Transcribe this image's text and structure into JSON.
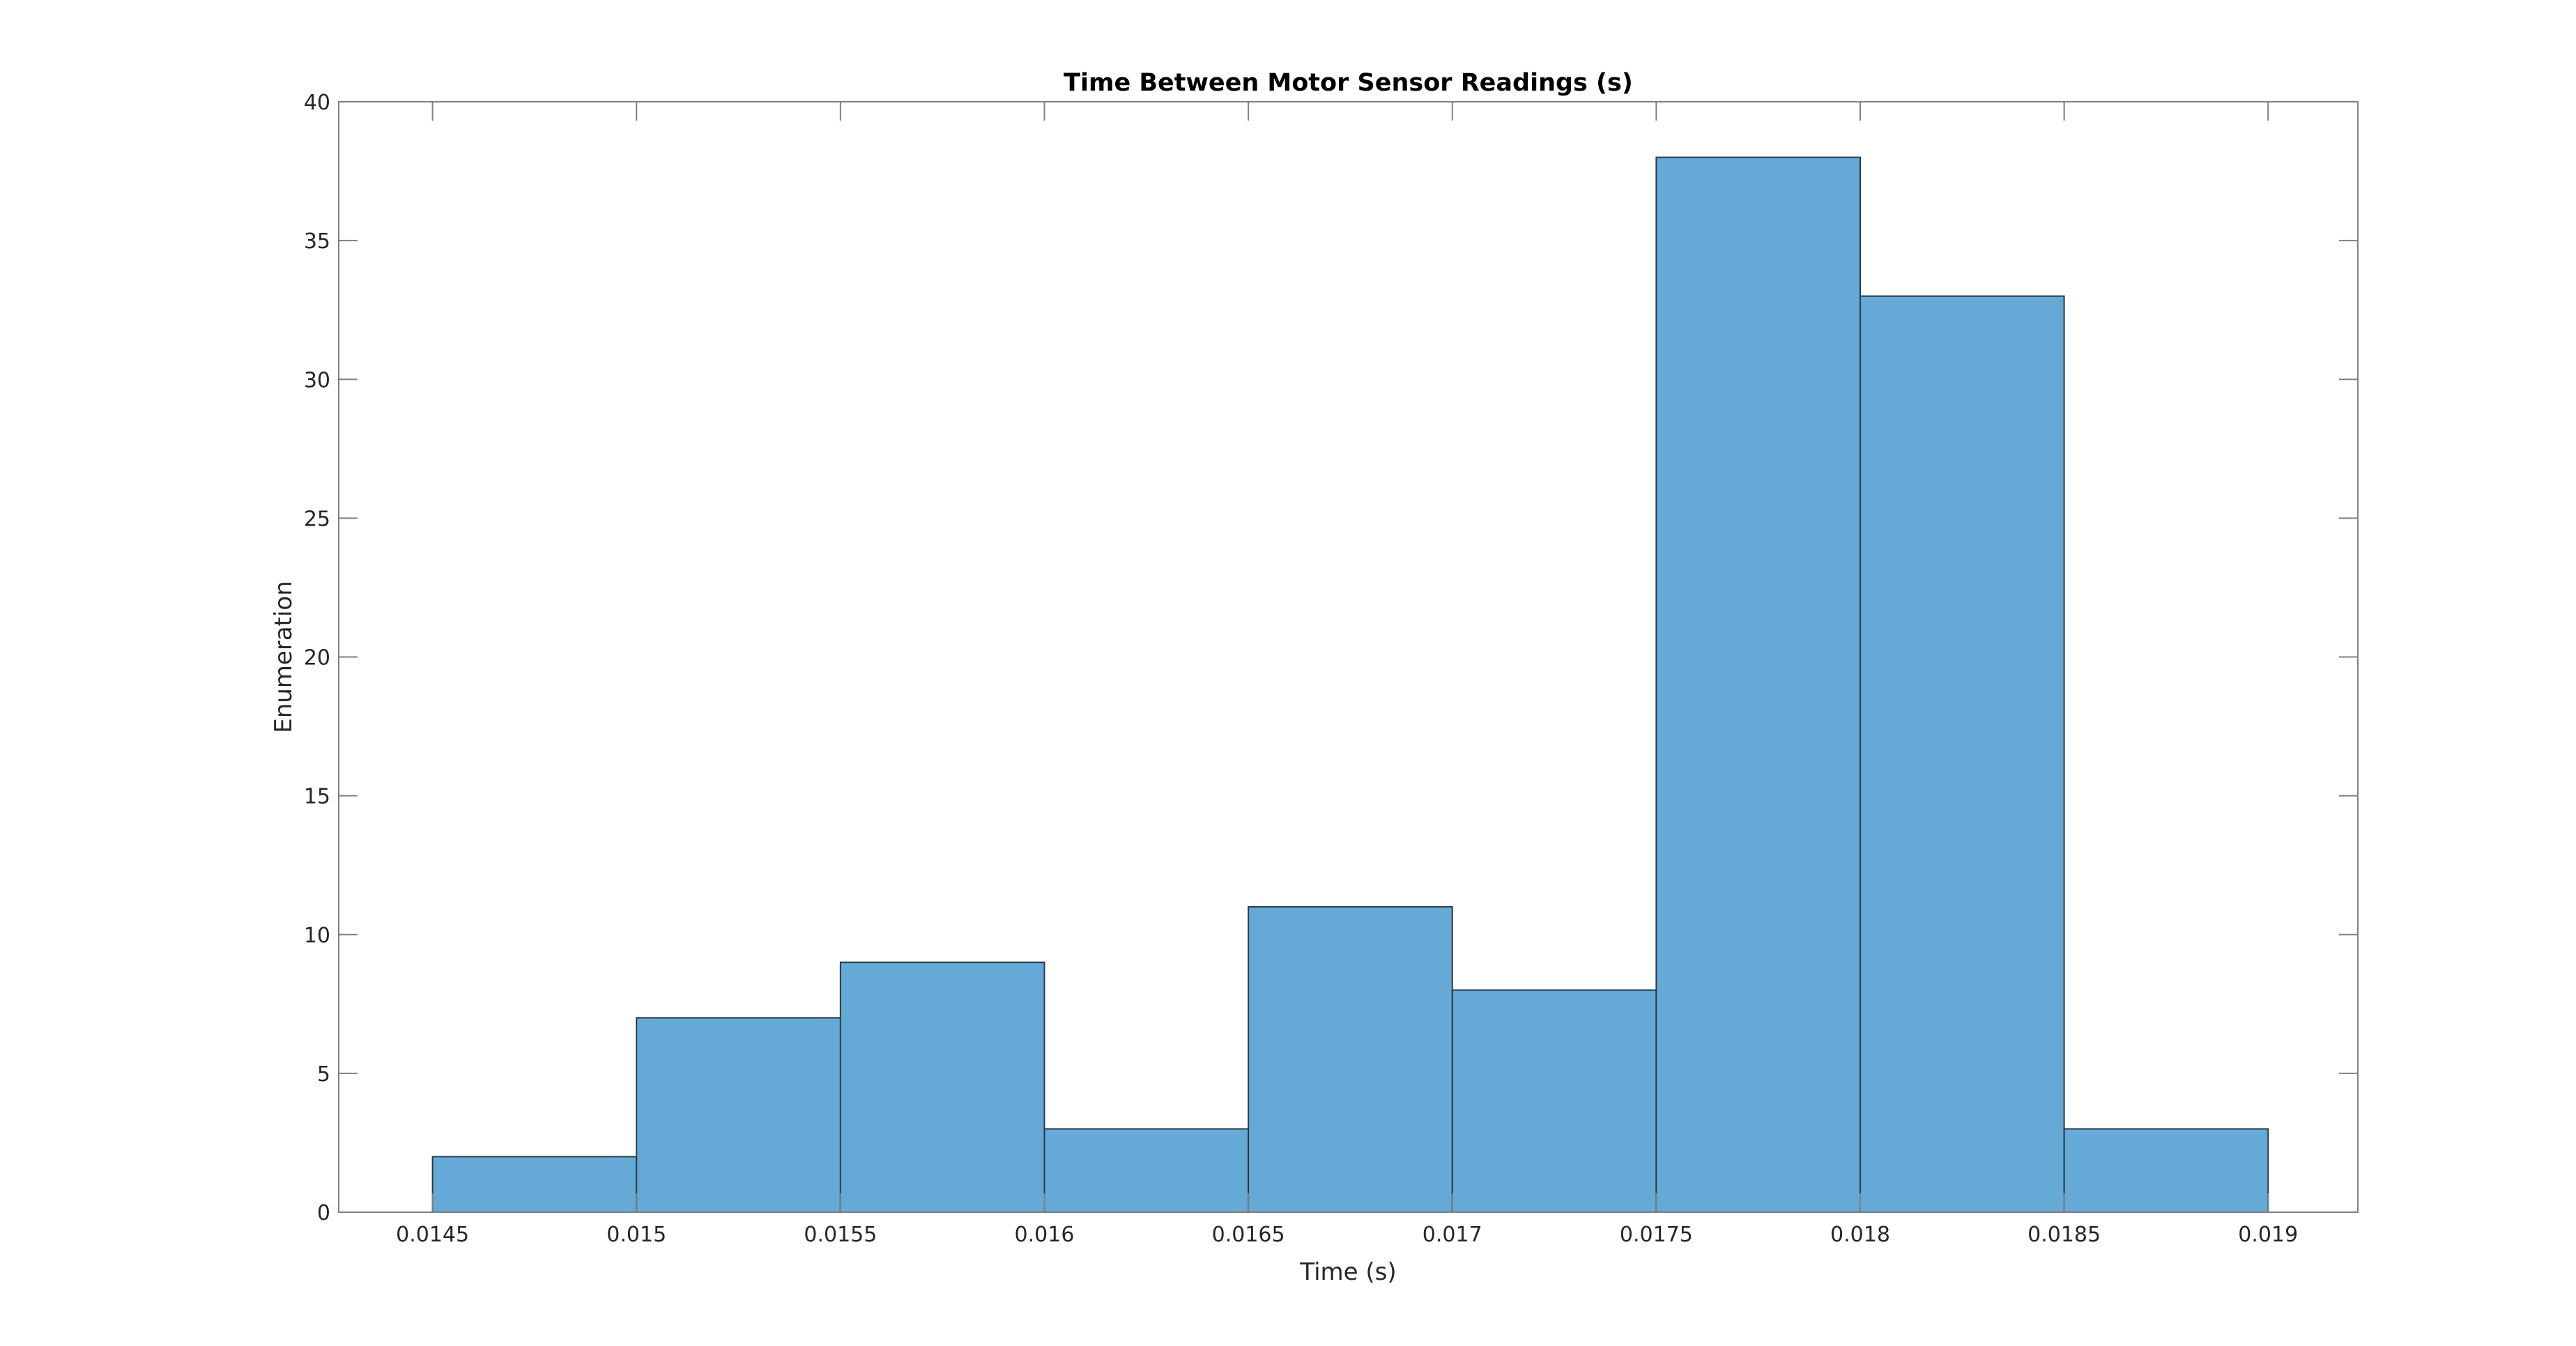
{
  "chart_data": {
    "type": "bar",
    "title": "Time Between Motor Sensor Readings (s)",
    "xlabel": "Time (s)",
    "ylabel": "Enumeration",
    "bin_edges": [
      0.0145,
      0.015,
      0.0155,
      0.016,
      0.0165,
      0.017,
      0.0175,
      0.018,
      0.0185,
      0.019
    ],
    "values": [
      2,
      7,
      9,
      3,
      11,
      8,
      38,
      33,
      3
    ],
    "xlim": [
      0.01427,
      0.01922
    ],
    "ylim": [
      0,
      40
    ],
    "xticks": [
      0.0145,
      0.015,
      0.0155,
      0.016,
      0.0165,
      0.017,
      0.0175,
      0.018,
      0.0185,
      0.019
    ],
    "xtick_labels": [
      "0.0145",
      "0.015",
      "0.0155",
      "0.016",
      "0.0165",
      "0.017",
      "0.0175",
      "0.018",
      "0.0185",
      "0.019"
    ],
    "yticks": [
      0,
      5,
      10,
      15,
      20,
      25,
      30,
      35,
      40
    ],
    "ytick_labels": [
      "0",
      "5",
      "10",
      "15",
      "20",
      "25",
      "30",
      "35",
      "40"
    ],
    "bar_color": "#65a9d7",
    "bar_edge_color": "#2b3a45",
    "axis_color": "#7f7f7f",
    "grid": false,
    "legend": false
  }
}
